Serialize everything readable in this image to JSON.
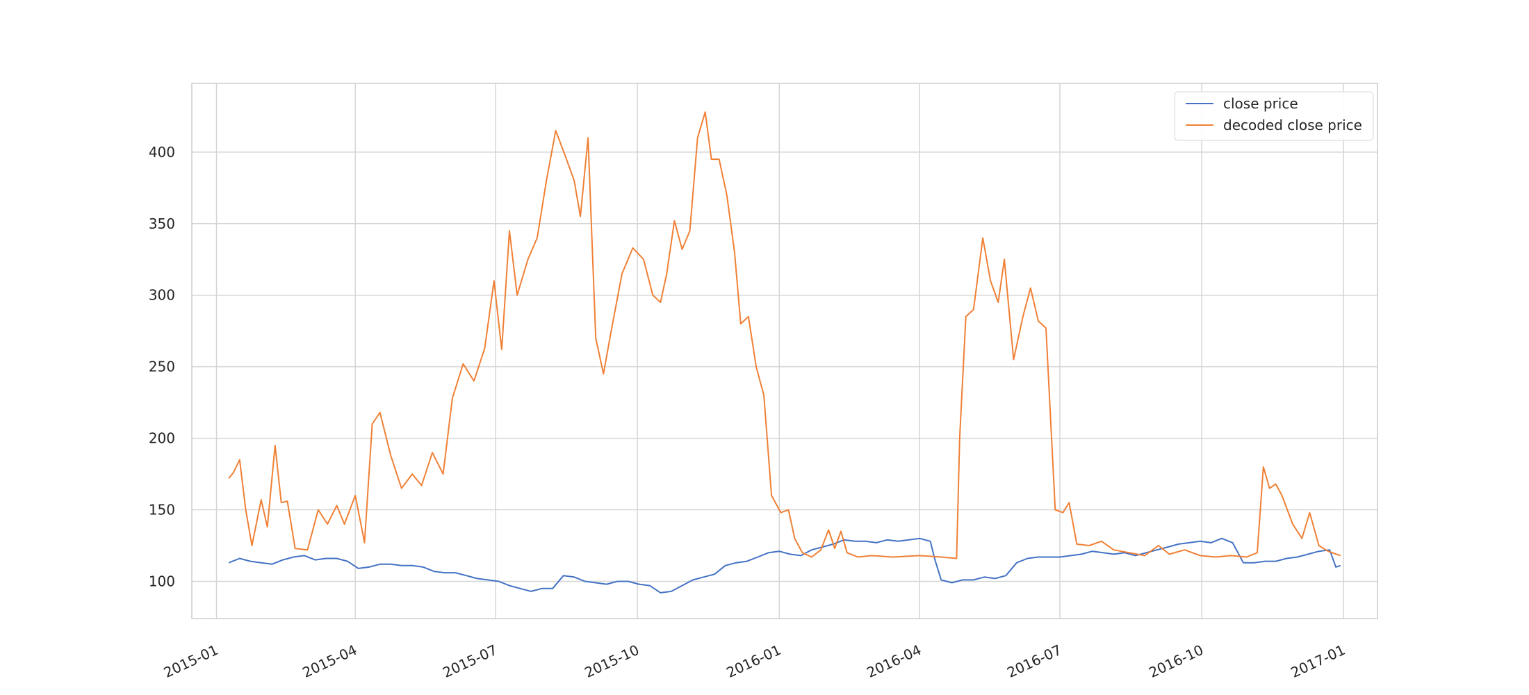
{
  "chart_data": {
    "type": "line",
    "title": "",
    "xlabel": "",
    "ylabel": "",
    "grid": true,
    "legend_position": "top-right",
    "xlim": [
      "2014-12-16",
      "2017-01-23"
    ],
    "ylim": [
      74,
      448
    ],
    "x_ticks": [
      "2015-01",
      "2015-04",
      "2015-07",
      "2015-10",
      "2016-01",
      "2016-04",
      "2016-07",
      "2016-10",
      "2017-01"
    ],
    "y_ticks": [
      100,
      150,
      200,
      250,
      300,
      350,
      400
    ],
    "series": [
      {
        "name": "close price",
        "color": "#4472c4",
        "points": [
          [
            "2015-01-09",
            113
          ],
          [
            "2015-01-16",
            116
          ],
          [
            "2015-01-23",
            114
          ],
          [
            "2015-01-30",
            113
          ],
          [
            "2015-02-06",
            112
          ],
          [
            "2015-02-13",
            115
          ],
          [
            "2015-02-20",
            117
          ],
          [
            "2015-02-27",
            118
          ],
          [
            "2015-03-06",
            115
          ],
          [
            "2015-03-13",
            116
          ],
          [
            "2015-03-20",
            116
          ],
          [
            "2015-03-27",
            114
          ],
          [
            "2015-04-03",
            109
          ],
          [
            "2015-04-10",
            110
          ],
          [
            "2015-04-17",
            112
          ],
          [
            "2015-04-24",
            112
          ],
          [
            "2015-05-01",
            111
          ],
          [
            "2015-05-08",
            111
          ],
          [
            "2015-05-15",
            110
          ],
          [
            "2015-05-22",
            107
          ],
          [
            "2015-05-29",
            106
          ],
          [
            "2015-06-05",
            106
          ],
          [
            "2015-06-12",
            104
          ],
          [
            "2015-06-19",
            102
          ],
          [
            "2015-06-26",
            101
          ],
          [
            "2015-07-03",
            100
          ],
          [
            "2015-07-10",
            97
          ],
          [
            "2015-07-17",
            95
          ],
          [
            "2015-07-24",
            93
          ],
          [
            "2015-07-31",
            95
          ],
          [
            "2015-08-07",
            95
          ],
          [
            "2015-08-14",
            104
          ],
          [
            "2015-08-21",
            103
          ],
          [
            "2015-08-28",
            100
          ],
          [
            "2015-09-04",
            99
          ],
          [
            "2015-09-11",
            98
          ],
          [
            "2015-09-18",
            100
          ],
          [
            "2015-09-25",
            100
          ],
          [
            "2015-10-02",
            98
          ],
          [
            "2015-10-09",
            97
          ],
          [
            "2015-10-16",
            92
          ],
          [
            "2015-10-23",
            93
          ],
          [
            "2015-10-30",
            97
          ],
          [
            "2015-11-06",
            101
          ],
          [
            "2015-11-13",
            103
          ],
          [
            "2015-11-20",
            105
          ],
          [
            "2015-11-27",
            111
          ],
          [
            "2015-12-04",
            113
          ],
          [
            "2015-12-11",
            114
          ],
          [
            "2015-12-18",
            117
          ],
          [
            "2015-12-25",
            120
          ],
          [
            "2016-01-01",
            121
          ],
          [
            "2016-01-08",
            119
          ],
          [
            "2016-01-15",
            118
          ],
          [
            "2016-01-22",
            122
          ],
          [
            "2016-01-29",
            124
          ],
          [
            "2016-02-05",
            126
          ],
          [
            "2016-02-12",
            129
          ],
          [
            "2016-02-19",
            128
          ],
          [
            "2016-02-26",
            128
          ],
          [
            "2016-03-04",
            127
          ],
          [
            "2016-03-11",
            129
          ],
          [
            "2016-03-18",
            128
          ],
          [
            "2016-03-25",
            129
          ],
          [
            "2016-04-01",
            130
          ],
          [
            "2016-04-08",
            128
          ],
          [
            "2016-04-11",
            115
          ],
          [
            "2016-04-15",
            101
          ],
          [
            "2016-04-22",
            99
          ],
          [
            "2016-04-29",
            101
          ],
          [
            "2016-05-06",
            101
          ],
          [
            "2016-05-13",
            103
          ],
          [
            "2016-05-20",
            102
          ],
          [
            "2016-05-27",
            104
          ],
          [
            "2016-06-03",
            113
          ],
          [
            "2016-06-10",
            116
          ],
          [
            "2016-06-17",
            117
          ],
          [
            "2016-06-24",
            117
          ],
          [
            "2016-07-01",
            117
          ],
          [
            "2016-07-08",
            118
          ],
          [
            "2016-07-15",
            119
          ],
          [
            "2016-07-22",
            121
          ],
          [
            "2016-07-29",
            120
          ],
          [
            "2016-08-05",
            119
          ],
          [
            "2016-08-12",
            120
          ],
          [
            "2016-08-19",
            118
          ],
          [
            "2016-08-26",
            120
          ],
          [
            "2016-09-02",
            122
          ],
          [
            "2016-09-09",
            124
          ],
          [
            "2016-09-16",
            126
          ],
          [
            "2016-09-23",
            127
          ],
          [
            "2016-09-30",
            128
          ],
          [
            "2016-10-07",
            127
          ],
          [
            "2016-10-14",
            130
          ],
          [
            "2016-10-21",
            127
          ],
          [
            "2016-10-28",
            113
          ],
          [
            "2016-11-04",
            113
          ],
          [
            "2016-11-11",
            114
          ],
          [
            "2016-11-18",
            114
          ],
          [
            "2016-11-25",
            116
          ],
          [
            "2016-12-02",
            117
          ],
          [
            "2016-12-09",
            119
          ],
          [
            "2016-12-16",
            121
          ],
          [
            "2016-12-23",
            122
          ],
          [
            "2016-12-27",
            110
          ],
          [
            "2016-12-30",
            111
          ]
        ]
      },
      {
        "name": "decoded close price",
        "color": "#f08035",
        "points": [
          [
            "2015-01-09",
            172
          ],
          [
            "2015-01-12",
            176
          ],
          [
            "2015-01-16",
            185
          ],
          [
            "2015-01-20",
            150
          ],
          [
            "2015-01-24",
            125
          ],
          [
            "2015-01-30",
            157
          ],
          [
            "2015-02-03",
            138
          ],
          [
            "2015-02-08",
            195
          ],
          [
            "2015-02-12",
            155
          ],
          [
            "2015-02-16",
            156
          ],
          [
            "2015-02-21",
            123
          ],
          [
            "2015-03-01",
            122
          ],
          [
            "2015-03-08",
            150
          ],
          [
            "2015-03-14",
            140
          ],
          [
            "2015-03-20",
            153
          ],
          [
            "2015-03-25",
            140
          ],
          [
            "2015-04-01",
            160
          ],
          [
            "2015-04-07",
            127
          ],
          [
            "2015-04-12",
            210
          ],
          [
            "2015-04-17",
            218
          ],
          [
            "2015-04-24",
            188
          ],
          [
            "2015-05-01",
            165
          ],
          [
            "2015-05-08",
            175
          ],
          [
            "2015-05-14",
            167
          ],
          [
            "2015-05-21",
            190
          ],
          [
            "2015-05-28",
            175
          ],
          [
            "2015-06-03",
            228
          ],
          [
            "2015-06-10",
            252
          ],
          [
            "2015-06-17",
            240
          ],
          [
            "2015-06-24",
            263
          ],
          [
            "2015-06-30",
            310
          ],
          [
            "2015-07-05",
            262
          ],
          [
            "2015-07-10",
            345
          ],
          [
            "2015-07-15",
            300
          ],
          [
            "2015-07-22",
            325
          ],
          [
            "2015-07-28",
            340
          ],
          [
            "2015-08-03",
            380
          ],
          [
            "2015-08-09",
            415
          ],
          [
            "2015-08-16",
            395
          ],
          [
            "2015-08-21",
            380
          ],
          [
            "2015-08-25",
            355
          ],
          [
            "2015-08-30",
            410
          ],
          [
            "2015-09-04",
            270
          ],
          [
            "2015-09-09",
            245
          ],
          [
            "2015-09-14",
            275
          ],
          [
            "2015-09-21",
            315
          ],
          [
            "2015-09-28",
            333
          ],
          [
            "2015-10-05",
            325
          ],
          [
            "2015-10-11",
            300
          ],
          [
            "2015-10-16",
            295
          ],
          [
            "2015-10-20",
            315
          ],
          [
            "2015-10-25",
            352
          ],
          [
            "2015-10-30",
            332
          ],
          [
            "2015-11-04",
            345
          ],
          [
            "2015-11-09",
            410
          ],
          [
            "2015-11-14",
            428
          ],
          [
            "2015-11-18",
            395
          ],
          [
            "2015-11-23",
            395
          ],
          [
            "2015-11-28",
            370
          ],
          [
            "2015-12-03",
            330
          ],
          [
            "2015-12-07",
            280
          ],
          [
            "2015-12-12",
            285
          ],
          [
            "2015-12-17",
            250
          ],
          [
            "2015-12-22",
            230
          ],
          [
            "2015-12-27",
            160
          ],
          [
            "2016-01-02",
            148
          ],
          [
            "2016-01-07",
            150
          ],
          [
            "2016-01-11",
            130
          ],
          [
            "2016-01-16",
            120
          ],
          [
            "2016-01-22",
            117
          ],
          [
            "2016-01-28",
            122
          ],
          [
            "2016-02-02",
            136
          ],
          [
            "2016-02-06",
            123
          ],
          [
            "2016-02-10",
            135
          ],
          [
            "2016-02-14",
            120
          ],
          [
            "2016-02-21",
            117
          ],
          [
            "2016-03-01",
            118
          ],
          [
            "2016-03-15",
            117
          ],
          [
            "2016-04-01",
            118
          ],
          [
            "2016-04-15",
            117
          ],
          [
            "2016-04-25",
            116
          ],
          [
            "2016-04-27",
            200
          ],
          [
            "2016-05-01",
            285
          ],
          [
            "2016-05-06",
            290
          ],
          [
            "2016-05-12",
            340
          ],
          [
            "2016-05-17",
            310
          ],
          [
            "2016-05-22",
            295
          ],
          [
            "2016-05-26",
            325
          ],
          [
            "2016-06-01",
            255
          ],
          [
            "2016-06-07",
            285
          ],
          [
            "2016-06-12",
            305
          ],
          [
            "2016-06-17",
            282
          ],
          [
            "2016-06-22",
            277
          ],
          [
            "2016-06-28",
            150
          ],
          [
            "2016-07-03",
            148
          ],
          [
            "2016-07-07",
            155
          ],
          [
            "2016-07-12",
            126
          ],
          [
            "2016-07-20",
            125
          ],
          [
            "2016-07-28",
            128
          ],
          [
            "2016-08-05",
            122
          ],
          [
            "2016-08-15",
            120
          ],
          [
            "2016-08-25",
            118
          ],
          [
            "2016-09-03",
            125
          ],
          [
            "2016-09-10",
            119
          ],
          [
            "2016-09-20",
            122
          ],
          [
            "2016-09-30",
            118
          ],
          [
            "2016-10-10",
            117
          ],
          [
            "2016-10-20",
            118
          ],
          [
            "2016-10-30",
            117
          ],
          [
            "2016-11-06",
            120
          ],
          [
            "2016-11-10",
            180
          ],
          [
            "2016-11-14",
            165
          ],
          [
            "2016-11-18",
            168
          ],
          [
            "2016-11-22",
            160
          ],
          [
            "2016-11-29",
            140
          ],
          [
            "2016-12-05",
            130
          ],
          [
            "2016-12-10",
            148
          ],
          [
            "2016-12-16",
            125
          ],
          [
            "2016-12-22",
            121
          ],
          [
            "2016-12-30",
            118
          ]
        ]
      }
    ]
  }
}
